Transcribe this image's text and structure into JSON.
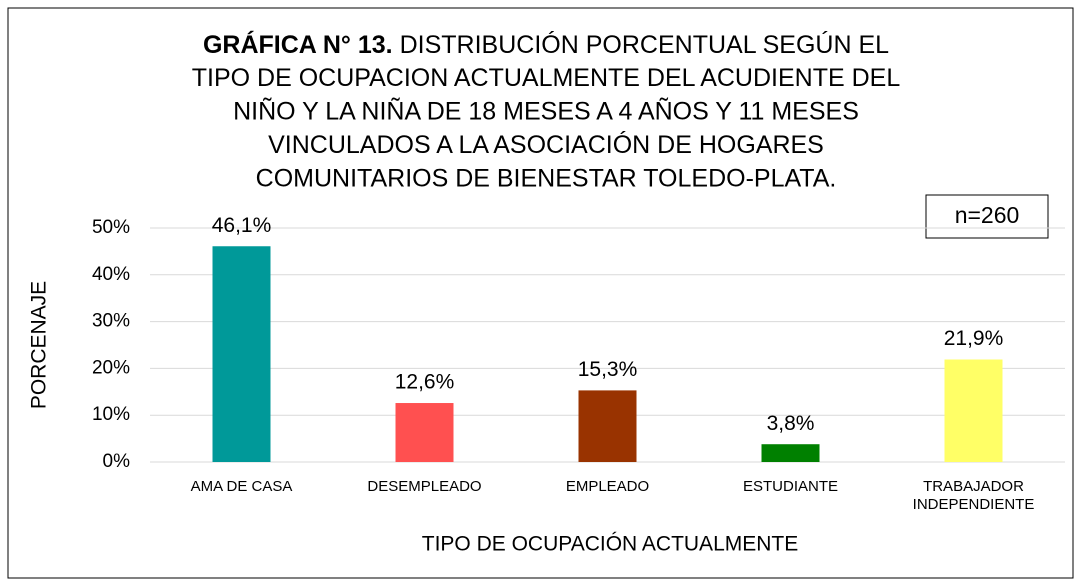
{
  "chart_data": {
    "type": "bar",
    "title_prefix": "GRÁFICA N° 13.",
    "title_lines": [
      "DISTRIBUCIÓN PORCENTUAL SEGÚN EL",
      "TIPO DE OCUPACION ACTUALMENTE DEL ACUDIENTE DEL",
      "NIÑO Y LA NIÑA DE 18 MESES A 4 AÑOS Y 11 MESES",
      "VINCULADOS A LA ASOCIACIÓN DE HOGARES",
      "COMUNITARIOS DE BIENESTAR TOLEDO-PLATA."
    ],
    "annotation": "n=260",
    "y_label": "PORCENAJE",
    "x_label": "TIPO DE OCUPACIÓN ACTUALMENTE",
    "categories": [
      "AMA DE CASA",
      "DESEMPLEADO",
      "EMPLEADO",
      "ESTUDIANTE",
      "TRABAJADOR INDEPENDIENTE"
    ],
    "values": [
      46.1,
      12.6,
      15.3,
      3.8,
      21.9
    ],
    "value_labels": [
      "46,1%",
      "12,6%",
      "15,3%",
      "3,8%",
      "21,9%"
    ],
    "colors": [
      "#009999",
      "#ff5050",
      "#993300",
      "#008000",
      "#ffff66"
    ],
    "ylim": [
      0,
      50
    ],
    "yticks": [
      {
        "value": 0,
        "label": "0%"
      },
      {
        "value": 10,
        "label": "10%"
      },
      {
        "value": 20,
        "label": "20%"
      },
      {
        "value": 30,
        "label": "30%"
      },
      {
        "value": 40,
        "label": "40%"
      },
      {
        "value": 50,
        "label": "50%"
      }
    ],
    "grid": true
  }
}
